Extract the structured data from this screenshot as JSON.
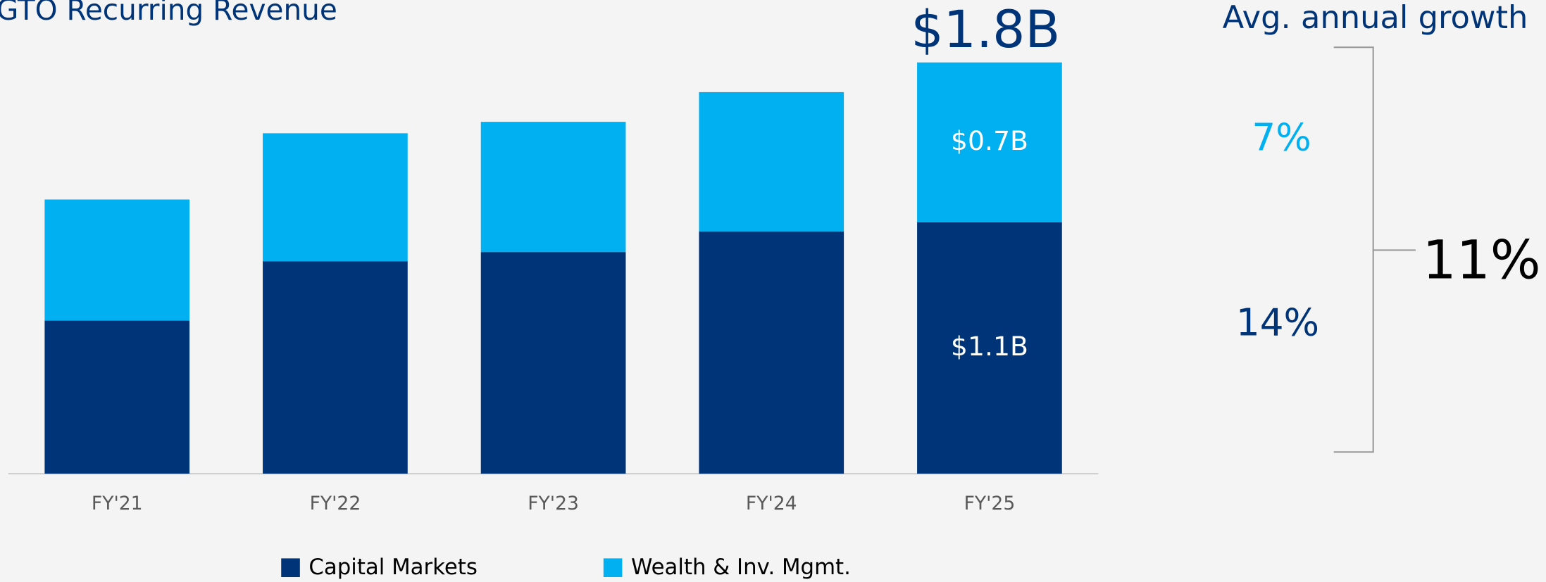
{
  "chart_data": {
    "type": "stacked_bar",
    "title": "GTO Recurring Revenue",
    "categories": [
      "FY'21",
      "FY'22",
      "FY'23",
      "FY'24",
      "FY'25"
    ],
    "series": [
      {
        "name": "Capital Markets",
        "color": "#003478",
        "label_color": "#ffffff",
        "values": [
          0.67,
          0.93,
          0.97,
          1.06,
          1.1
        ],
        "value_labels": [
          null,
          null,
          null,
          null,
          "$1.1B"
        ]
      },
      {
        "name": "Wealth & Inv. Mgmt.",
        "color": "#00b0f0",
        "label_color": "#ffffff",
        "values": [
          0.53,
          0.56,
          0.57,
          0.61,
          0.7
        ],
        "value_labels": [
          null,
          null,
          null,
          null,
          "$0.7B"
        ]
      }
    ],
    "total_label": "$1.8B",
    "ylim": [
      0,
      2
    ],
    "growth": {
      "title": "Avg. annual growth",
      "wealth": "7%",
      "capital": "14%",
      "overall": "11%"
    }
  }
}
